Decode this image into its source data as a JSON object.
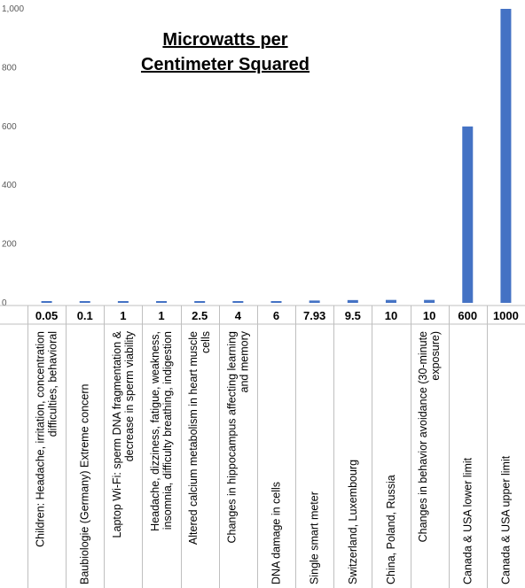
{
  "chart_data": {
    "type": "bar",
    "title_line1": "Microwatts per",
    "title_line2": "Centimeter Squared",
    "ylim": [
      0,
      1000
    ],
    "yticks": [
      0,
      200,
      400,
      600,
      800,
      1000
    ],
    "ytick_labels": [
      "0",
      "200",
      "400",
      "600",
      "800",
      "1,000"
    ],
    "grid": false,
    "bar_color": "#4472c4",
    "categories": [
      "Children: Headache, irritation, concentration|difficulties, behavioral",
      "Baubiologie (Germany) Extreme concern",
      "Laptop Wi-Fi: sperm DNA fragmentation &|decrease in sperm viability",
      "Headache, dizziness, fatigue, weakness,|insomnia, difficulty breathing, indigestion",
      "Altered calcium metabolism in heart muscle|cells",
      "Changes in hippocampus affecting learning|and memory",
      "DNA damage in cells",
      "Single smart meter",
      "Switzerland, Luxembourg",
      "China, Poland, Russia",
      "Changes in behavior avoidance (30-minute|exposure)",
      "Canada & USA lower limit",
      "Canada & USA upper limit"
    ],
    "values": [
      0.05,
      0.1,
      1,
      1,
      2.5,
      4,
      6,
      7.93,
      9.5,
      10,
      10,
      600,
      1000
    ],
    "value_labels": [
      "0.05",
      "0.1",
      "1",
      "1",
      "2.5",
      "4",
      "6",
      "7.93",
      "9.5",
      "10",
      "10",
      "600",
      "1000"
    ]
  }
}
